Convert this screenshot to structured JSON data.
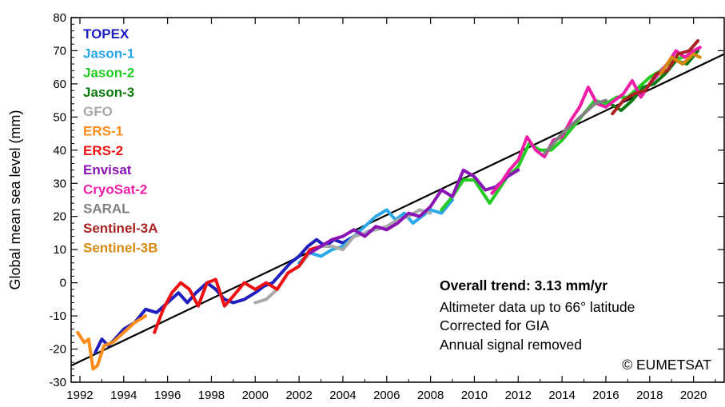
{
  "chart_data": {
    "type": "line",
    "ylabel": "Global mean sea level (mm)",
    "xlabel": "",
    "xlim": [
      1991.6,
      2021.4
    ],
    "ylim": [
      -30,
      80
    ],
    "x_ticks": [
      1992,
      1994,
      1996,
      1998,
      2000,
      2002,
      2004,
      2006,
      2008,
      2010,
      2012,
      2014,
      2016,
      2018,
      2020
    ],
    "y_ticks": [
      -30,
      -20,
      -10,
      0,
      10,
      20,
      30,
      40,
      50,
      60,
      70,
      80
    ],
    "legend_position": "top-left",
    "trend": {
      "slope_mm_per_yr": 3.13,
      "points": [
        [
          1991.6,
          -25
        ],
        [
          2021.4,
          69
        ]
      ],
      "color": "#000000"
    },
    "annotations": [
      "Overall trend: 3.13 mm/yr",
      "Altimeter data up to 66° latitude",
      "Corrected for GIA",
      "Annual signal removed",
      "© EUMETSAT"
    ],
    "series": [
      {
        "name": "TOPEX",
        "color": "#1f1fc0",
        "points": [
          [
            1992.7,
            -21
          ],
          [
            1993.0,
            -17
          ],
          [
            1993.3,
            -19
          ],
          [
            1993.6,
            -17
          ],
          [
            1994.0,
            -14
          ],
          [
            1994.5,
            -12
          ],
          [
            1995.0,
            -8
          ],
          [
            1995.5,
            -9
          ],
          [
            1996.0,
            -6
          ],
          [
            1996.5,
            -3
          ],
          [
            1996.9,
            -6
          ],
          [
            1997.3,
            -3
          ],
          [
            1997.8,
            0
          ],
          [
            1998.2,
            -2
          ],
          [
            1998.6,
            -5
          ],
          [
            1999.0,
            -6
          ],
          [
            1999.5,
            -5
          ],
          [
            2000.0,
            -3
          ],
          [
            2000.4,
            -1
          ],
          [
            2000.8,
            0
          ],
          [
            2001.2,
            3
          ],
          [
            2001.6,
            6
          ],
          [
            2002.0,
            8
          ],
          [
            2002.4,
            11
          ],
          [
            2002.8,
            13
          ],
          [
            2003.2,
            11
          ],
          [
            2003.6,
            13
          ],
          [
            2004.0,
            12
          ],
          [
            2004.5,
            14
          ],
          [
            2005.0,
            15
          ],
          [
            2005.4,
            16
          ]
        ]
      },
      {
        "name": "Jason-1",
        "color": "#2aa8e8",
        "points": [
          [
            2002.0,
            6
          ],
          [
            2002.5,
            9
          ],
          [
            2003.0,
            8
          ],
          [
            2003.5,
            10
          ],
          [
            2004.0,
            11
          ],
          [
            2004.5,
            14
          ],
          [
            2005.0,
            17
          ],
          [
            2005.5,
            20
          ],
          [
            2006.0,
            22
          ],
          [
            2006.4,
            19
          ],
          [
            2006.8,
            21
          ],
          [
            2007.2,
            18
          ],
          [
            2007.6,
            20
          ],
          [
            2008.0,
            22
          ],
          [
            2008.5,
            21
          ],
          [
            2009.0,
            25
          ]
        ]
      },
      {
        "name": "Jason-2",
        "color": "#22cc22",
        "points": [
          [
            2008.5,
            22
          ],
          [
            2009.0,
            26
          ],
          [
            2009.5,
            31
          ],
          [
            2010.0,
            31
          ],
          [
            2010.4,
            27
          ],
          [
            2010.7,
            24
          ],
          [
            2011.0,
            27
          ],
          [
            2011.5,
            32
          ],
          [
            2012.0,
            35
          ],
          [
            2012.5,
            42
          ],
          [
            2013.0,
            40
          ],
          [
            2013.5,
            40
          ],
          [
            2014.0,
            43
          ],
          [
            2014.5,
            47
          ],
          [
            2015.0,
            51
          ],
          [
            2015.5,
            55
          ],
          [
            2016.0,
            54
          ],
          [
            2016.5,
            56
          ],
          [
            2017.0,
            56
          ],
          [
            2017.5,
            59
          ],
          [
            2018.0,
            62
          ],
          [
            2018.5,
            64
          ],
          [
            2019.0,
            67
          ],
          [
            2019.5,
            68
          ]
        ]
      },
      {
        "name": "Jason-3",
        "color": "#0e7a10",
        "points": [
          [
            2016.2,
            54
          ],
          [
            2016.7,
            52
          ],
          [
            2017.2,
            55
          ],
          [
            2017.7,
            59
          ],
          [
            2018.2,
            60
          ],
          [
            2018.7,
            63
          ],
          [
            2019.2,
            67
          ],
          [
            2019.7,
            66
          ],
          [
            2020.2,
            70
          ]
        ]
      },
      {
        "name": "GFO",
        "color": "#aaaaaa",
        "points": [
          [
            2000.0,
            -6
          ],
          [
            2000.5,
            -5
          ],
          [
            2001.0,
            -2
          ],
          [
            2001.5,
            3
          ],
          [
            2002.0,
            5
          ],
          [
            2002.5,
            9
          ],
          [
            2003.0,
            11
          ],
          [
            2003.5,
            11
          ],
          [
            2004.0,
            10
          ],
          [
            2004.5,
            14
          ],
          [
            2005.0,
            15
          ],
          [
            2005.5,
            16
          ],
          [
            2006.0,
            17
          ],
          [
            2006.5,
            19
          ],
          [
            2007.0,
            20
          ],
          [
            2007.5,
            22
          ],
          [
            2008.0,
            21
          ]
        ]
      },
      {
        "name": "ERS-1",
        "color": "#ff8c1a",
        "points": [
          [
            1991.9,
            -15
          ],
          [
            1992.2,
            -18
          ],
          [
            1992.4,
            -17
          ],
          [
            1992.6,
            -26
          ],
          [
            1992.8,
            -25
          ],
          [
            1993.1,
            -19
          ],
          [
            1993.5,
            -18
          ],
          [
            1994.0,
            -15
          ],
          [
            1994.5,
            -12
          ],
          [
            1995.0,
            -10
          ]
        ]
      },
      {
        "name": "ERS-2",
        "color": "#ee1111",
        "points": [
          [
            1995.4,
            -15
          ],
          [
            1995.8,
            -8
          ],
          [
            1996.2,
            -3
          ],
          [
            1996.6,
            0
          ],
          [
            1997.0,
            -2
          ],
          [
            1997.4,
            -7
          ],
          [
            1997.8,
            0
          ],
          [
            1998.2,
            1
          ],
          [
            1998.6,
            -7
          ],
          [
            1999.0,
            -4
          ],
          [
            1999.5,
            0
          ],
          [
            2000.0,
            -2
          ],
          [
            2000.5,
            0
          ],
          [
            2001.0,
            -2
          ],
          [
            2001.5,
            3
          ],
          [
            2002.0,
            5
          ],
          [
            2002.5,
            10
          ],
          [
            2003.0,
            11
          ]
        ]
      },
      {
        "name": "Envisat",
        "color": "#8a14b4",
        "points": [
          [
            2002.5,
            9
          ],
          [
            2003.0,
            11
          ],
          [
            2003.5,
            13
          ],
          [
            2004.0,
            14
          ],
          [
            2004.5,
            16
          ],
          [
            2005.0,
            14
          ],
          [
            2005.5,
            17
          ],
          [
            2006.0,
            16
          ],
          [
            2006.5,
            18
          ],
          [
            2007.0,
            21
          ],
          [
            2007.5,
            20
          ],
          [
            2008.0,
            23
          ],
          [
            2008.5,
            28
          ],
          [
            2009.0,
            26
          ],
          [
            2009.5,
            34
          ],
          [
            2010.0,
            32
          ],
          [
            2010.5,
            28
          ],
          [
            2011.0,
            29
          ],
          [
            2011.5,
            32
          ],
          [
            2012.0,
            34
          ]
        ]
      },
      {
        "name": "CryoSat-2",
        "color": "#ee1ea8",
        "points": [
          [
            2010.8,
            27
          ],
          [
            2011.2,
            30
          ],
          [
            2011.6,
            34
          ],
          [
            2012.0,
            37
          ],
          [
            2012.4,
            44
          ],
          [
            2012.8,
            40
          ],
          [
            2013.2,
            38
          ],
          [
            2013.6,
            43
          ],
          [
            2014.0,
            44
          ],
          [
            2014.4,
            49
          ],
          [
            2014.8,
            53
          ],
          [
            2015.2,
            59
          ],
          [
            2015.6,
            54
          ],
          [
            2016.0,
            53
          ],
          [
            2016.4,
            55
          ],
          [
            2016.8,
            57
          ],
          [
            2017.2,
            61
          ],
          [
            2017.6,
            56
          ],
          [
            2018.0,
            60
          ],
          [
            2018.4,
            63
          ],
          [
            2018.8,
            66
          ],
          [
            2019.2,
            70
          ],
          [
            2019.6,
            68
          ],
          [
            2020.0,
            70
          ],
          [
            2020.3,
            71
          ]
        ]
      },
      {
        "name": "SARAL",
        "color": "#808080",
        "points": [
          [
            2013.2,
            39
          ],
          [
            2013.6,
            42
          ],
          [
            2014.0,
            45
          ],
          [
            2014.5,
            48
          ],
          [
            2015.0,
            51
          ],
          [
            2015.5,
            54
          ],
          [
            2016.0,
            55
          ]
        ]
      },
      {
        "name": "Sentinel-3A",
        "color": "#aa2222",
        "points": [
          [
            2016.3,
            51
          ],
          [
            2016.8,
            55
          ],
          [
            2017.3,
            57
          ],
          [
            2017.8,
            58
          ],
          [
            2018.3,
            63
          ],
          [
            2018.8,
            64
          ],
          [
            2019.3,
            69
          ],
          [
            2019.8,
            70
          ],
          [
            2020.2,
            73
          ]
        ]
      },
      {
        "name": "Sentinel-3B",
        "color": "#d88a10",
        "points": [
          [
            2018.5,
            63
          ],
          [
            2019.0,
            68
          ],
          [
            2019.5,
            66
          ],
          [
            2020.0,
            69
          ],
          [
            2020.3,
            68
          ]
        ]
      }
    ]
  }
}
